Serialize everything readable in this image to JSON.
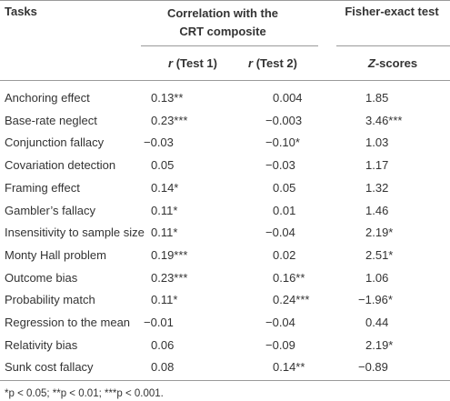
{
  "header": {
    "tasks": "Tasks",
    "group1": "Correlation with the CRT composite",
    "group2": "Fisher-exact test",
    "sub": [
      {
        "var": "r",
        "label": "(Test 1)"
      },
      {
        "var": "r",
        "label": "(Test 2)"
      },
      {
        "var": "Z",
        "label": "-scores"
      }
    ]
  },
  "table": {
    "rows": [
      [
        "Anchoring effect",
        "0.13**",
        "0.004",
        "1.85"
      ],
      [
        "Base-rate neglect",
        "0.23***",
        "−0.003",
        "3.46***"
      ],
      [
        "Conjunction fallacy",
        "−0.03",
        "−0.10*",
        "1.03"
      ],
      [
        "Covariation detection",
        "0.05",
        "−0.03",
        "1.17"
      ],
      [
        "Framing effect",
        "0.14*",
        "0.05",
        "1.32"
      ],
      [
        "Gambler’s fallacy",
        "0.11*",
        "0.01",
        "1.46"
      ],
      [
        "Insensitivity to sample size",
        "0.11*",
        "−0.04",
        "2.19*"
      ],
      [
        "Monty Hall problem",
        "0.19***",
        "0.02",
        "2.51*"
      ],
      [
        "Outcome bias",
        "0.23***",
        "0.16**",
        "1.06"
      ],
      [
        "Probability match",
        "0.11*",
        "0.24***",
        "−1.96*"
      ],
      [
        "Regression to the mean",
        "−0.01",
        "−0.04",
        "0.44"
      ],
      [
        "Relativity bias",
        "0.06",
        "−0.09",
        "2.19*"
      ],
      [
        "Sunk cost fallacy",
        "0.08",
        "0.14**",
        "−0.89"
      ]
    ]
  },
  "footnote": "*p < 0.05; **p < 0.01; ***p < 0.001."
}
